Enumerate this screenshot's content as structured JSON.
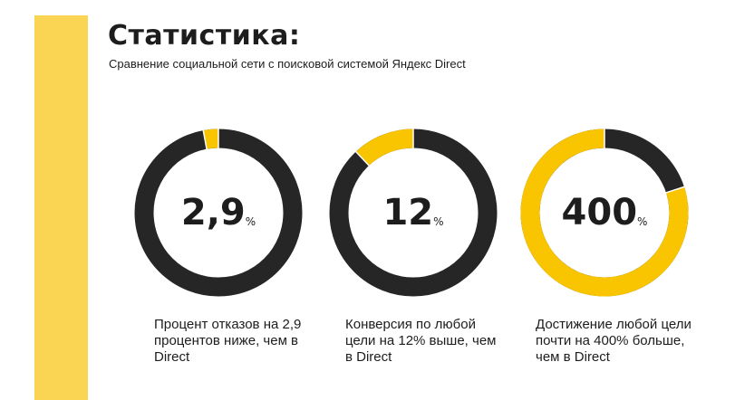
{
  "header": {
    "title": "Статистика:",
    "subtitle": "Сравнение социальной сети с поисковой системой Яндекс Direct"
  },
  "colors": {
    "dark": "#262626",
    "accent": "#f9c400",
    "side_bar": "#f9d553"
  },
  "chart_data": {
    "type": "donut",
    "items": [
      {
        "label": "2,9",
        "unit": "%",
        "accent_share": 0.029,
        "caption": "Процент отказов на 2,9 процентов ниже, чем в Direct"
      },
      {
        "label": "12",
        "unit": "%",
        "accent_share": 0.12,
        "caption": "Конверсия по любой цели на 12% выше, чем в Direct"
      },
      {
        "label": "400",
        "unit": "%",
        "accent_share": 0.8,
        "caption": "Достижение любой цели почти на 400% больше, чем в Direct"
      }
    ]
  }
}
